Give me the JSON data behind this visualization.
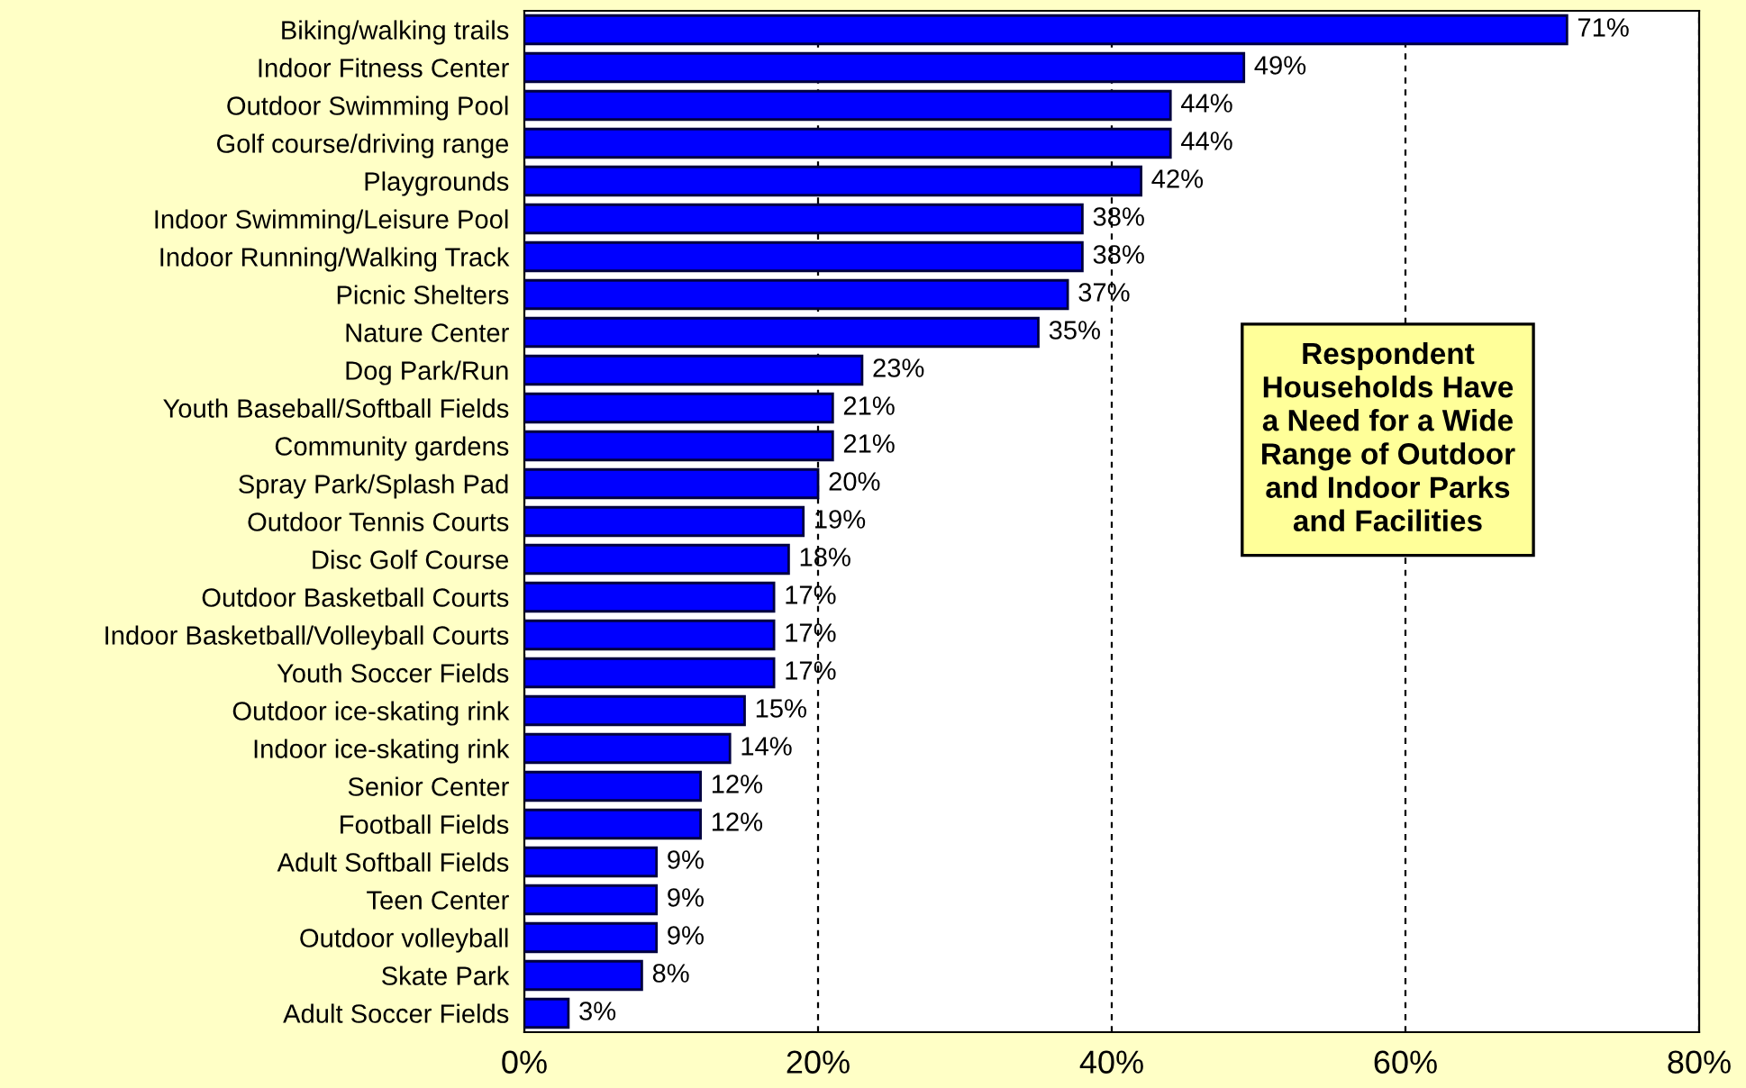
{
  "chart_data": {
    "type": "bar",
    "orientation": "horizontal",
    "categories": [
      "Biking/walking trails",
      "Indoor Fitness Center",
      "Outdoor Swimming Pool",
      "Golf course/driving range",
      "Playgrounds",
      "Indoor Swimming/Leisure Pool",
      "Indoor Running/Walking Track",
      "Picnic Shelters",
      "Nature Center",
      "Dog Park/Run",
      "Youth Baseball/Softball Fields",
      "Community gardens",
      "Spray Park/Splash Pad",
      "Outdoor Tennis Courts",
      "Disc Golf Course",
      "Outdoor Basketball Courts",
      "Indoor Basketball/Volleyball Courts",
      "Youth Soccer Fields",
      "Outdoor ice-skating rink",
      "Indoor ice-skating rink",
      "Senior Center",
      "Football Fields",
      "Adult Softball Fields",
      "Teen Center",
      "Outdoor volleyball",
      "Skate Park",
      "Adult Soccer Fields"
    ],
    "values": [
      71,
      49,
      44,
      44,
      42,
      38,
      38,
      37,
      35,
      23,
      21,
      21,
      20,
      19,
      18,
      17,
      17,
      17,
      15,
      14,
      12,
      12,
      9,
      9,
      9,
      8,
      3
    ],
    "value_labels": [
      "71%",
      "49%",
      "44%",
      "44%",
      "42%",
      "38%",
      "38%",
      "37%",
      "35%",
      "23%",
      "21%",
      "21%",
      "20%",
      "19%",
      "18%",
      "17%",
      "17%",
      "17%",
      "15%",
      "14%",
      "12%",
      "12%",
      "9%",
      "9%",
      "9%",
      "8%",
      "3%"
    ],
    "color": "#0000ff",
    "xlim": [
      0,
      80
    ],
    "xticks": [
      {
        "value": 0,
        "label": "0%"
      },
      {
        "value": 20,
        "label": "20%"
      },
      {
        "value": 40,
        "label": "40%"
      },
      {
        "value": 60,
        "label": "60%"
      },
      {
        "value": 80,
        "label": "80%"
      }
    ],
    "grid": "x",
    "legend": false,
    "annotations": [
      "Respondent\nHouseholds Have\na Need for a Wide\nRange of Outdoor\nand Indoor Parks\nand Facilities"
    ]
  }
}
